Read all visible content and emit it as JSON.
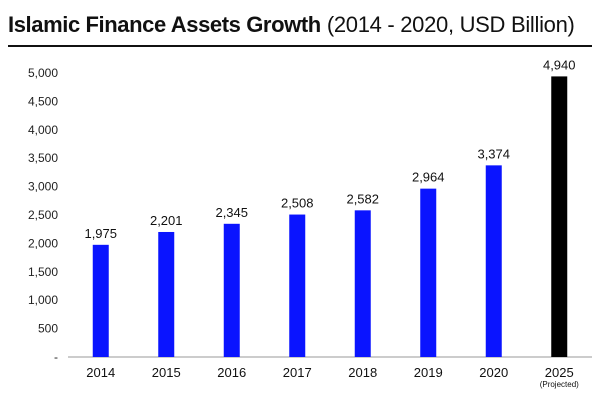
{
  "header": {
    "title_bold": "Islamic Finance Assets Growth",
    "title_rest": "(2014 - 2020, USD Billion)"
  },
  "chart_data": {
    "type": "bar",
    "title": "Islamic Finance Assets Growth (2014 - 2020, USD Billion)",
    "categories": [
      "2014",
      "2015",
      "2016",
      "2017",
      "2018",
      "2019",
      "2020",
      "2025"
    ],
    "category_notes": [
      "",
      "",
      "",
      "",
      "",
      "",
      "",
      "(Projected)"
    ],
    "values": [
      1975,
      2201,
      2345,
      2508,
      2582,
      2964,
      3374,
      4940
    ],
    "value_labels": [
      "1,975",
      "2,201",
      "2,345",
      "2,508",
      "2,582",
      "2,964",
      "3,374",
      "4,940"
    ],
    "ylim": [
      0,
      5000
    ],
    "yticks": [
      0,
      500,
      1000,
      1500,
      2000,
      2500,
      3000,
      3500,
      4000,
      4500,
      5000
    ],
    "ytick_labels": [
      "-",
      "500",
      "1,000",
      "1,500",
      "2,000",
      "2,500",
      "3,000",
      "3,500",
      "4,000",
      "4,500",
      "5,000"
    ],
    "bar_colors": [
      "#0a14ff",
      "#0a14ff",
      "#0a14ff",
      "#0a14ff",
      "#0a14ff",
      "#0a14ff",
      "#0a14ff",
      "#000000"
    ],
    "grid": false,
    "legend": "none"
  }
}
